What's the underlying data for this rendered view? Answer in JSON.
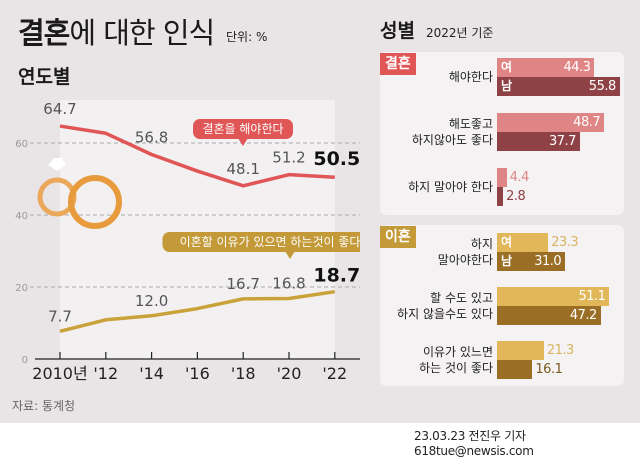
{
  "header": {
    "title_bold": "결혼",
    "title_rest": "에 대한 인식",
    "unit": "단위: %",
    "credit": "23.03.23 전진우 기자 618tue@newsis.com"
  },
  "left": {
    "subtitle": "연도별",
    "source": "자료: 통계청"
  },
  "right": {
    "subtitle": "성별",
    "subtitle_note": "2022년 기준",
    "marriage_tag": "결혼",
    "divorce_tag": "이혼",
    "female_tag": "여",
    "male_tag": "남"
  },
  "colors": {
    "marriage_line": "#e05555",
    "divorce_line": "#c9a23a",
    "marriage_female": "#df8585",
    "marriage_male": "#8f4246",
    "divorce_female": "#e1b75a",
    "divorce_male": "#9a6e24",
    "marriage_tag": "#e05555",
    "divorce_tag": "#c39a37"
  },
  "chart_data": [
    {
      "type": "line",
      "title": "연도별",
      "xlabel": "",
      "ylabel": "",
      "categories": [
        "2010년",
        "'12",
        "'14",
        "'16",
        "'18",
        "'20",
        "'22"
      ],
      "yticks": [
        0,
        20,
        40,
        60
      ],
      "ylim": [
        0,
        70
      ],
      "grid": true,
      "series": [
        {
          "name": "결혼을 해야한다",
          "values": [
            64.7,
            62.7,
            56.8,
            52.2,
            48.1,
            51.2,
            50.5
          ],
          "labels": [
            "64.7",
            "",
            "56.8",
            "",
            "48.1",
            "51.2",
            "50.5"
          ]
        },
        {
          "name": "이혼할 이유가 있으면 하는것이 좋다",
          "values": [
            7.7,
            10.9,
            12.0,
            14.0,
            16.7,
            16.8,
            18.7
          ],
          "labels": [
            "7.7",
            "",
            "12.0",
            "",
            "16.7",
            "16.8",
            "18.7"
          ]
        }
      ]
    },
    {
      "type": "bar",
      "title": "성별 2022년 기준 - 결혼",
      "categories": [
        "해야한다",
        "해도좋고 하지않아도 좋다",
        "하지 말아야 한다"
      ],
      "category_lines": [
        [
          "해야한다"
        ],
        [
          "해도좋고",
          "하지않아도 좋다"
        ],
        [
          "하지 말아야 한다"
        ]
      ],
      "series": [
        {
          "name": "여",
          "values": [
            44.3,
            48.7,
            4.4
          ]
        },
        {
          "name": "남",
          "values": [
            55.8,
            37.7,
            2.8
          ]
        }
      ]
    },
    {
      "type": "bar",
      "title": "성별 2022년 기준 - 이혼",
      "categories": [
        "하지 말아야한다",
        "할 수도 있고 하지 않을수도 있다",
        "이유가 있느면 하는 것이 좋다"
      ],
      "category_lines": [
        [
          "하지",
          "말아야한다"
        ],
        [
          "할 수도 있고",
          "하지 않을수도 있다"
        ],
        [
          "이유가 있느면",
          "하는 것이 좋다"
        ]
      ],
      "series": [
        {
          "name": "여",
          "values": [
            23.3,
            51.1,
            21.3
          ]
        },
        {
          "name": "남",
          "values": [
            31.0,
            47.2,
            16.1
          ]
        }
      ]
    }
  ]
}
